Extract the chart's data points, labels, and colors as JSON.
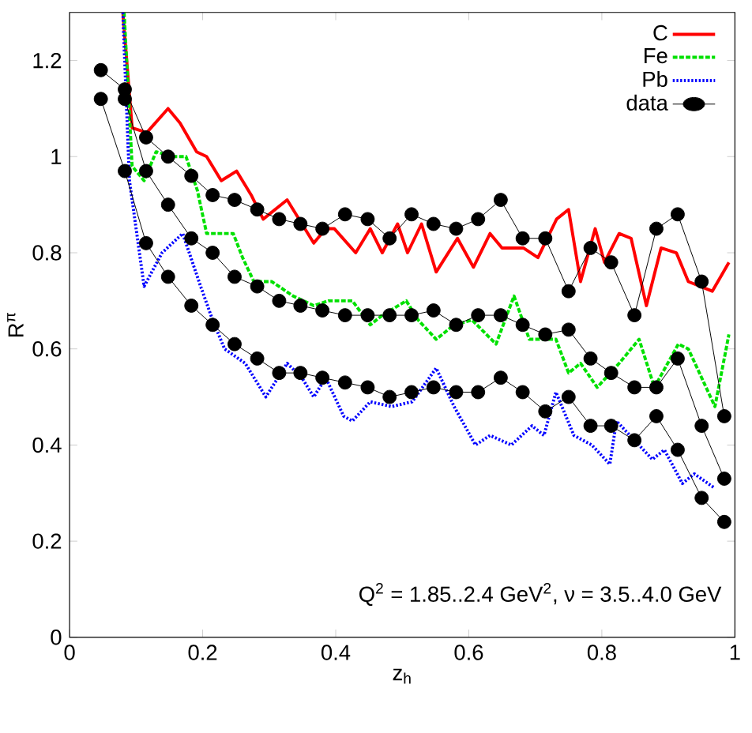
{
  "chart_data": {
    "type": "line",
    "xlabel": "z$_{h}$",
    "ylabel": "R$^{π}$",
    "xlim": [
      0,
      1
    ],
    "ylim": [
      0,
      1.3
    ],
    "xticks": [
      0,
      0.2,
      0.4,
      0.6,
      0.8,
      1
    ],
    "yticks": [
      0,
      0.2,
      0.4,
      0.6,
      0.8,
      1,
      1.2
    ],
    "legend": "top right",
    "annotations": [
      "Q$^{2}$ = 1.85..2.4 GeV$^{2}$, ν = 3.5..4.0 GeV"
    ],
    "series": [
      {
        "name": "C",
        "color": "#ff0000",
        "line_style": "solid",
        "x": [
          0.08,
          0.094,
          0.116,
          0.148,
          0.166,
          0.191,
          0.206,
          0.228,
          0.251,
          0.273,
          0.291,
          0.327,
          0.367,
          0.385,
          0.398,
          0.43,
          0.452,
          0.47,
          0.493,
          0.508,
          0.529,
          0.551,
          0.583,
          0.607,
          0.632,
          0.65,
          0.682,
          0.704,
          0.732,
          0.75,
          0.768,
          0.79,
          0.804,
          0.826,
          0.844,
          0.867,
          0.889,
          0.912,
          0.93,
          0.966,
          0.991
        ],
        "values": [
          1.3,
          1.06,
          1.05,
          1.1,
          1.07,
          1.01,
          1.0,
          0.95,
          0.97,
          0.92,
          0.87,
          0.91,
          0.82,
          0.85,
          0.85,
          0.8,
          0.85,
          0.8,
          0.86,
          0.8,
          0.86,
          0.76,
          0.83,
          0.77,
          0.84,
          0.81,
          0.81,
          0.79,
          0.87,
          0.89,
          0.74,
          0.85,
          0.78,
          0.84,
          0.83,
          0.69,
          0.81,
          0.8,
          0.74,
          0.72,
          0.78
        ]
      },
      {
        "name": "Fe",
        "color": "#00e000",
        "line_style": "dashed",
        "x": [
          0.082,
          0.094,
          0.112,
          0.13,
          0.157,
          0.175,
          0.192,
          0.206,
          0.228,
          0.246,
          0.26,
          0.277,
          0.304,
          0.336,
          0.367,
          0.389,
          0.425,
          0.452,
          0.47,
          0.506,
          0.524,
          0.551,
          0.578,
          0.605,
          0.641,
          0.668,
          0.691,
          0.731,
          0.75,
          0.768,
          0.793,
          0.826,
          0.856,
          0.879,
          0.915,
          0.93,
          0.97,
          0.991
        ],
        "values": [
          1.3,
          0.98,
          0.95,
          1.01,
          1.0,
          1.0,
          0.93,
          0.84,
          0.84,
          0.84,
          0.79,
          0.74,
          0.74,
          0.71,
          0.69,
          0.7,
          0.7,
          0.65,
          0.67,
          0.7,
          0.66,
          0.62,
          0.65,
          0.66,
          0.61,
          0.71,
          0.62,
          0.62,
          0.55,
          0.57,
          0.52,
          0.57,
          0.62,
          0.52,
          0.61,
          0.6,
          0.48,
          0.63
        ]
      },
      {
        "name": "Pb",
        "color": "#0000ff",
        "line_style": "dotted",
        "x": [
          0.08,
          0.09,
          0.112,
          0.139,
          0.17,
          0.197,
          0.215,
          0.233,
          0.264,
          0.295,
          0.327,
          0.349,
          0.367,
          0.385,
          0.412,
          0.425,
          0.452,
          0.484,
          0.515,
          0.551,
          0.578,
          0.61,
          0.632,
          0.664,
          0.695,
          0.713,
          0.731,
          0.758,
          0.785,
          0.812,
          0.822,
          0.849,
          0.876,
          0.894,
          0.921,
          0.939,
          0.97
        ],
        "values": [
          1.3,
          0.95,
          0.73,
          0.8,
          0.84,
          0.73,
          0.66,
          0.6,
          0.57,
          0.5,
          0.57,
          0.54,
          0.5,
          0.54,
          0.46,
          0.45,
          0.49,
          0.48,
          0.49,
          0.56,
          0.48,
          0.4,
          0.42,
          0.4,
          0.44,
          0.42,
          0.51,
          0.42,
          0.4,
          0.36,
          0.45,
          0.41,
          0.37,
          0.39,
          0.32,
          0.34,
          0.31
        ]
      },
      {
        "name": "data",
        "color": "#000000",
        "line_style": "solid",
        "marker": "circle",
        "x": [
          0.047,
          0.083,
          0.115,
          0.148,
          0.183,
          0.215,
          0.248,
          0.282,
          0.315,
          0.347,
          0.38,
          0.414,
          0.448,
          0.481,
          0.514,
          0.547,
          0.581,
          0.614,
          0.648,
          0.681,
          0.715,
          0.75,
          0.783,
          0.814,
          0.849,
          0.882,
          0.914,
          0.95,
          0.984
        ],
        "values": [
          1.18,
          1.14,
          1.04,
          1.0,
          0.96,
          0.92,
          0.91,
          0.89,
          0.87,
          0.86,
          0.85,
          0.88,
          0.87,
          0.83,
          0.88,
          0.86,
          0.85,
          0.87,
          0.91,
          0.83,
          0.83,
          0.72,
          0.81,
          0.78,
          0.67,
          0.85,
          0.88,
          0.74,
          0.46
        ]
      },
      {
        "color": "#000000",
        "line_style": "solid",
        "marker": "circle",
        "x": [
          0.083,
          0.115,
          0.148,
          0.183,
          0.215,
          0.248,
          0.282,
          0.315,
          0.347,
          0.38,
          0.414,
          0.448,
          0.481,
          0.514,
          0.547,
          0.581,
          0.614,
          0.648,
          0.681,
          0.715,
          0.75,
          0.783,
          0.814,
          0.849,
          0.882,
          0.914,
          0.95,
          0.984
        ],
        "values": [
          1.12,
          0.97,
          0.9,
          0.83,
          0.8,
          0.75,
          0.73,
          0.7,
          0.69,
          0.68,
          0.67,
          0.67,
          0.67,
          0.67,
          0.68,
          0.65,
          0.67,
          0.67,
          0.65,
          0.63,
          0.64,
          0.58,
          0.55,
          0.52,
          0.52,
          0.58,
          0.44,
          0.33
        ]
      },
      {
        "color": "#000000",
        "line_style": "solid",
        "marker": "circle",
        "x": [
          0.047,
          0.083,
          0.115,
          0.148,
          0.183,
          0.215,
          0.248,
          0.282,
          0.315,
          0.347,
          0.38,
          0.414,
          0.448,
          0.481,
          0.514,
          0.547,
          0.581,
          0.614,
          0.648,
          0.681,
          0.715,
          0.75,
          0.783,
          0.814,
          0.849,
          0.882,
          0.914,
          0.95,
          0.984
        ],
        "values": [
          1.12,
          0.97,
          0.82,
          0.75,
          0.69,
          0.65,
          0.61,
          0.58,
          0.55,
          0.55,
          0.54,
          0.53,
          0.52,
          0.5,
          0.51,
          0.52,
          0.51,
          0.51,
          0.54,
          0.51,
          0.47,
          0.5,
          0.44,
          0.44,
          0.41,
          0.46,
          0.39,
          0.29,
          0.24
        ]
      }
    ]
  }
}
